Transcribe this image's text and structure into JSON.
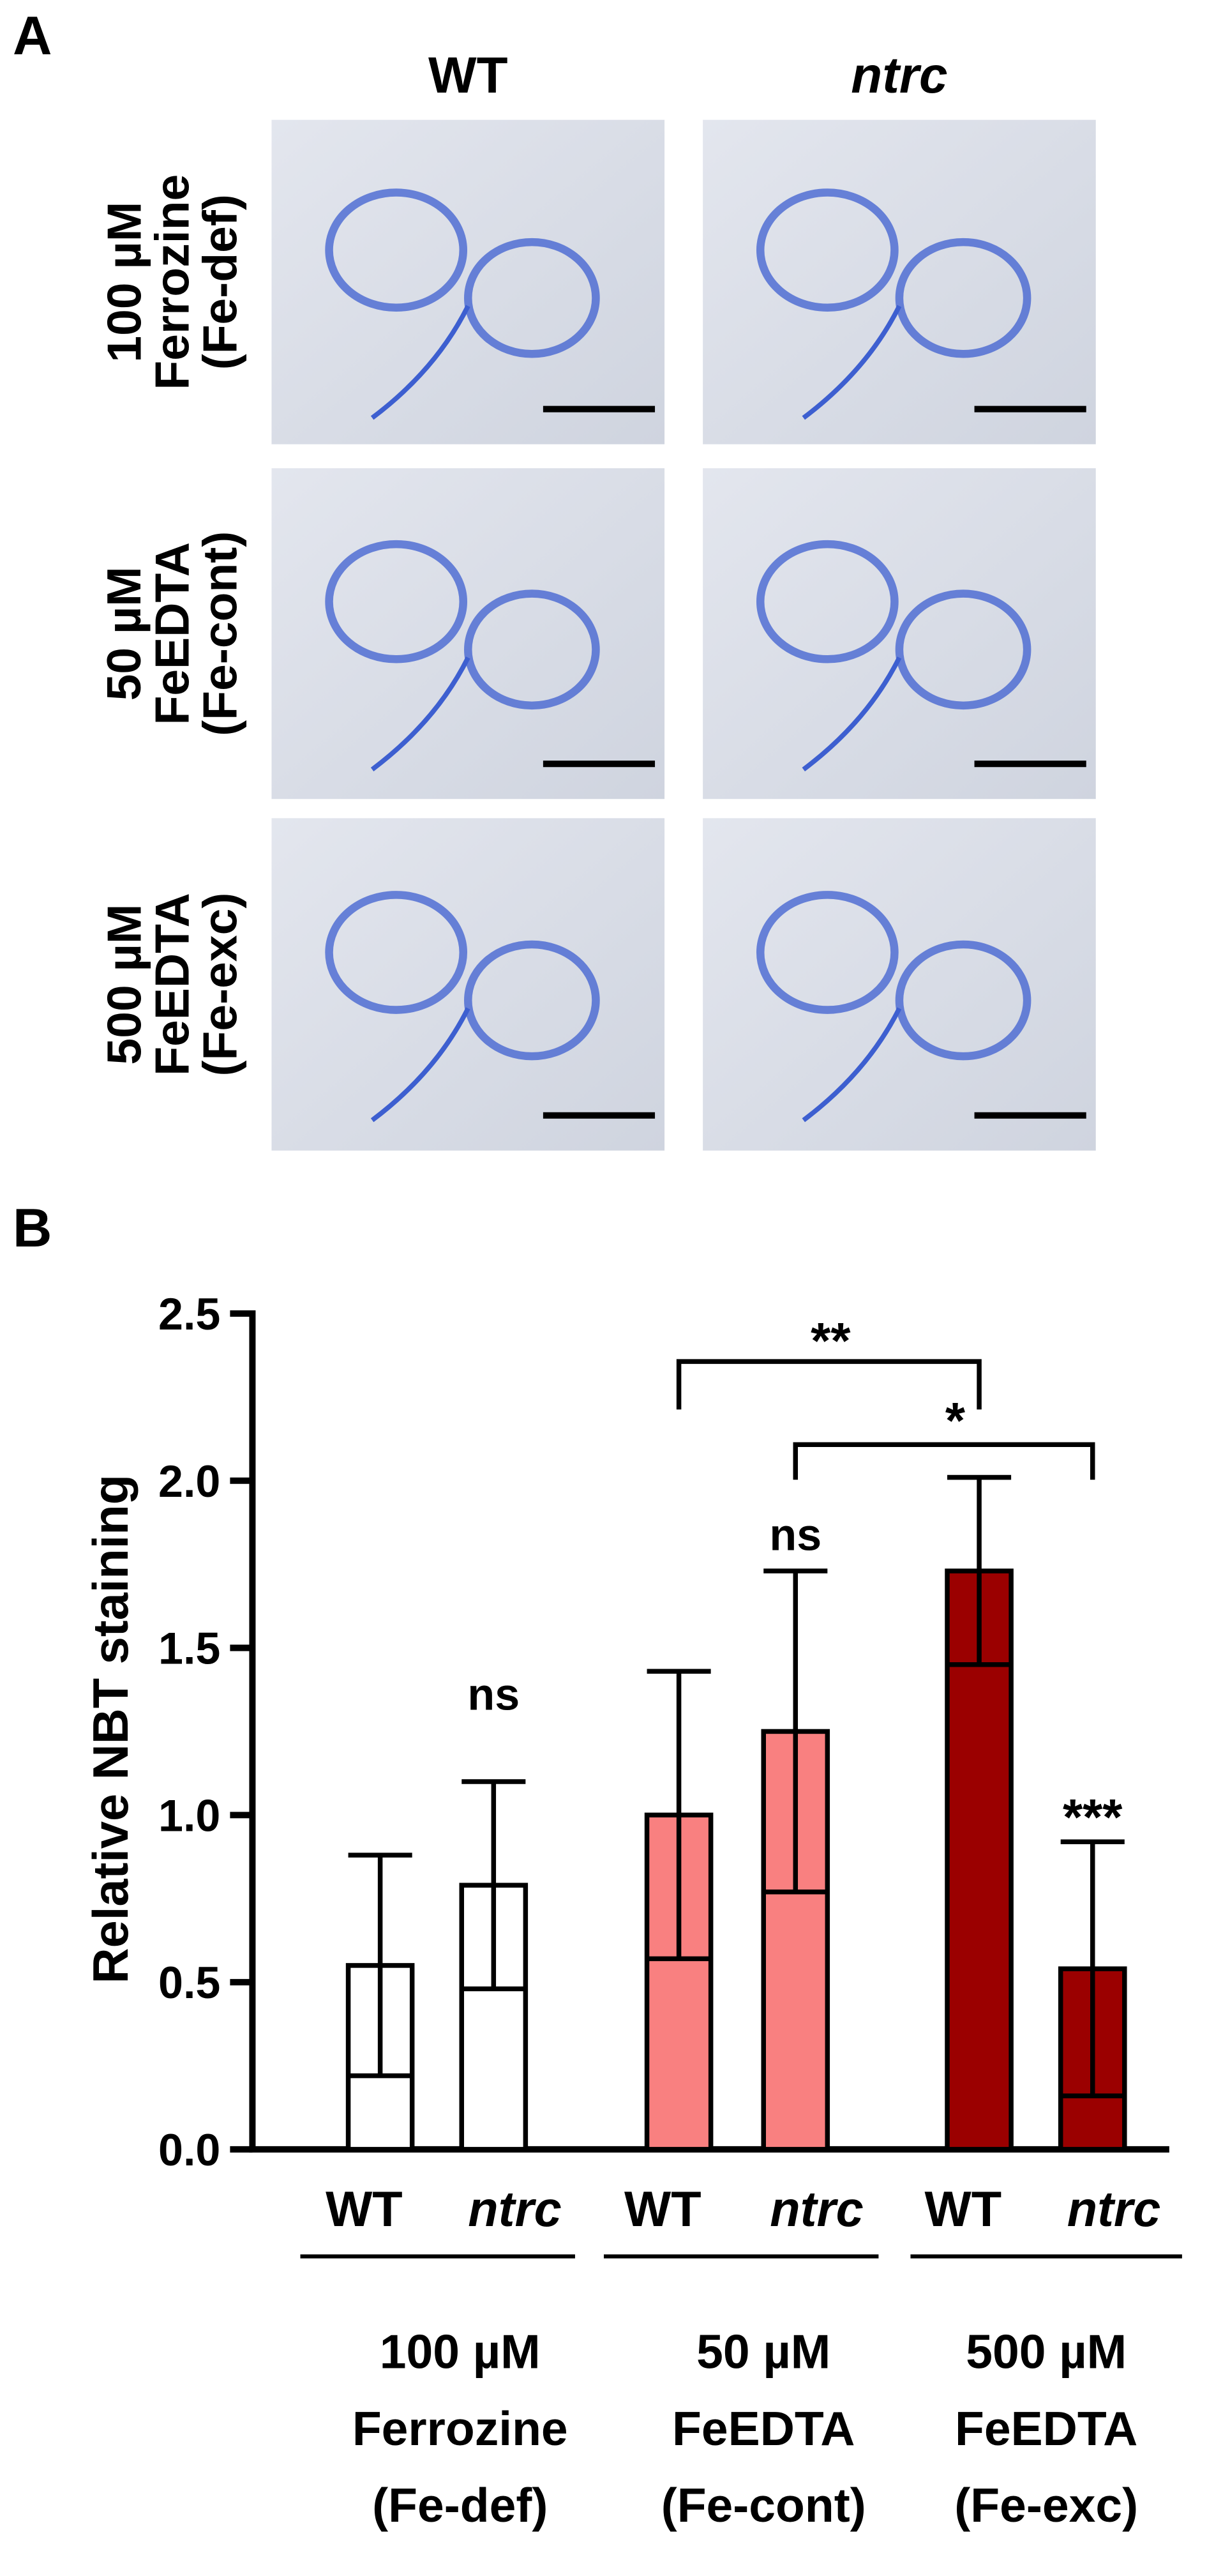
{
  "panel_a": {
    "label": "A",
    "column_headers": [
      "WT",
      "ntrc"
    ],
    "row_labels": [
      [
        "100 µM",
        "Ferrozine",
        "(Fe-def)"
      ],
      [
        "50 µM",
        "FeEDTA",
        "(Fe-cont)"
      ],
      [
        "500 µM",
        "FeEDTA",
        "(Fe-exc)"
      ]
    ]
  },
  "chart_data": {
    "type": "bar",
    "label": "B",
    "ylabel": "Relative NBT staining",
    "categories": [
      "WT",
      "ntrc",
      "WT",
      "ntrc",
      "WT",
      "ntrc"
    ],
    "values": [
      0.55,
      0.79,
      1.0,
      1.25,
      1.73,
      0.54
    ],
    "errors": [
      0.33,
      0.31,
      0.43,
      0.48,
      0.28,
      0.38
    ],
    "colors": [
      "#ffffff",
      "#ffffff",
      "#f98080",
      "#f98080",
      "#9b0000",
      "#9b0000"
    ],
    "groups": [
      [
        "100 µM",
        "Ferrozine",
        "(Fe-def)"
      ],
      [
        "50 µM",
        "FeEDTA",
        "(Fe-cont)"
      ],
      [
        "500 µM",
        "FeEDTA",
        "(Fe-exc)"
      ]
    ],
    "ylim": [
      0,
      2.5
    ],
    "yticks": [
      {
        "value": 0,
        "label": "0.0"
      },
      {
        "value": 0.5,
        "label": "0.5"
      },
      {
        "value": 1,
        "label": "1.0"
      },
      {
        "value": 1.5,
        "label": "1.5"
      },
      {
        "value": 2,
        "label": "2.0"
      },
      {
        "value": 2.5,
        "label": "2.5"
      }
    ],
    "annotations": [
      "ns",
      "ns",
      "***",
      "**",
      "*"
    ]
  }
}
